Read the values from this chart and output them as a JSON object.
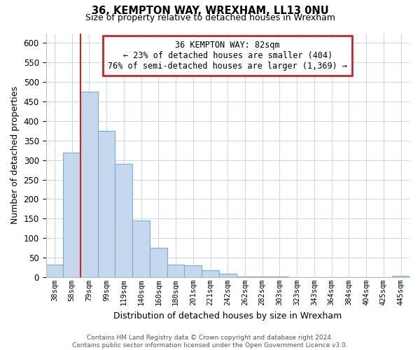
{
  "title": "36, KEMPTON WAY, WREXHAM, LL13 0NU",
  "subtitle": "Size of property relative to detached houses in Wrexham",
  "xlabel": "Distribution of detached houses by size in Wrexham",
  "ylabel": "Number of detached properties",
  "bar_color": "#c5d8ee",
  "bar_edge_color": "#7aadd4",
  "background_color": "#ffffff",
  "grid_color": "#d0d8e4",
  "annotation_box_edge": "#cc2222",
  "property_line_color": "#cc2222",
  "annotation_line1": "36 KEMPTON WAY: 82sqm",
  "annotation_line2": "← 23% of detached houses are smaller (404)",
  "annotation_line3": "76% of semi-detached houses are larger (1,369) →",
  "property_size_bin": 2,
  "bin_labels": [
    "38sqm",
    "58sqm",
    "79sqm",
    "99sqm",
    "119sqm",
    "140sqm",
    "160sqm",
    "180sqm",
    "201sqm",
    "221sqm",
    "242sqm",
    "262sqm",
    "282sqm",
    "303sqm",
    "323sqm",
    "343sqm",
    "364sqm",
    "384sqm",
    "404sqm",
    "425sqm",
    "445sqm"
  ],
  "bar_heights": [
    32,
    320,
    475,
    375,
    290,
    145,
    75,
    32,
    30,
    17,
    8,
    2,
    1,
    1,
    0,
    0,
    0,
    0,
    0,
    0,
    3
  ],
  "ylim": [
    0,
    625
  ],
  "yticks": [
    0,
    50,
    100,
    150,
    200,
    250,
    300,
    350,
    400,
    450,
    500,
    550,
    600
  ],
  "footer_line1": "Contains HM Land Registry data © Crown copyright and database right 2024.",
  "footer_line2": "Contains public sector information licensed under the Open Government Licence v3.0.",
  "fig_width": 6.0,
  "fig_height": 5.0,
  "dpi": 100
}
